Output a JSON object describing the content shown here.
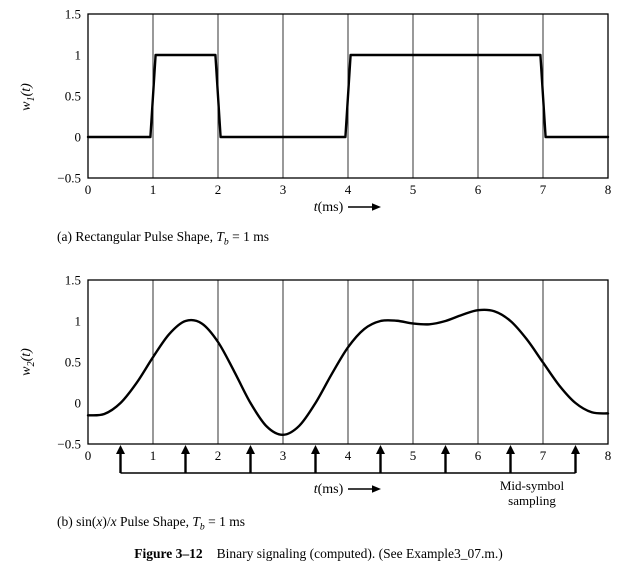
{
  "figure_caption": {
    "label": "Figure 3–12",
    "text": "Binary signaling (computed). (See Example3_07.m.)"
  },
  "plot_a": {
    "ylabel": {
      "base": "w",
      "sub": "1",
      "rest": "(t)"
    },
    "xlabel": {
      "t": "t",
      "units": "(ms)"
    },
    "caption": {
      "p1": "(a) Rectangular Pulse Shape, ",
      "T": "T",
      "Tsub": "b",
      "p2": " = 1 ms"
    }
  },
  "plot_b": {
    "ylabel": {
      "base": "w",
      "sub": "2",
      "rest": "(t)"
    },
    "xlabel": {
      "t": "t",
      "units": "(ms)"
    },
    "caption": {
      "p1": "(b) sin(",
      "x1": "x",
      "p2": ")/",
      "x2": "x",
      "p3": " Pulse Shape, ",
      "T": "T",
      "Tsub": "b",
      "p4": " = 1 ms"
    },
    "annotation": {
      "line1": "Mid-symbol",
      "line2": "sampling"
    }
  },
  "chart_data": [
    {
      "id": "plot_a",
      "type": "line",
      "title": "(a) Rectangular Pulse Shape, Tb = 1 ms",
      "xlabel": "t (ms)",
      "ylabel": "w1(t)",
      "xlim": [
        0,
        8
      ],
      "ylim": [
        -0.5,
        1.5
      ],
      "xticks": [
        0,
        1,
        2,
        3,
        4,
        5,
        6,
        7,
        8
      ],
      "yticks": [
        1.5,
        1,
        0.5,
        0,
        -0.5
      ],
      "grid": "vertical",
      "legend": "none",
      "smooth": false,
      "Tb_ms": 1,
      "bit_pattern": [
        0,
        1,
        0,
        0,
        1,
        1,
        1,
        0
      ],
      "x": [
        0,
        0.96,
        1.04,
        1.96,
        2.04,
        3.96,
        4.04,
        6.96,
        7.04,
        8
      ],
      "y": [
        0,
        0,
        1,
        1,
        0,
        0,
        1,
        1,
        0,
        0
      ]
    },
    {
      "id": "plot_b",
      "type": "line",
      "title": "(b) sin(x)/x Pulse Shape, Tb = 1 ms",
      "xlabel": "t (ms)",
      "ylabel": "w2(t)",
      "xlim": [
        0,
        8
      ],
      "ylim": [
        -0.5,
        1.5
      ],
      "xticks": [
        0,
        1,
        2,
        3,
        4,
        5,
        6,
        7,
        8
      ],
      "yticks": [
        1.5,
        1,
        0.5,
        0,
        -0.5
      ],
      "grid": "vertical",
      "legend": "none",
      "smooth": true,
      "Tb_ms": 1,
      "bit_pattern": [
        0,
        1,
        0,
        0,
        1,
        1,
        1,
        0
      ],
      "x": [
        0,
        0.25,
        0.5,
        0.75,
        1,
        1.25,
        1.5,
        1.75,
        2,
        2.25,
        2.5,
        2.75,
        3,
        3.25,
        3.5,
        3.75,
        4,
        4.25,
        4.5,
        4.75,
        5,
        5.25,
        5.5,
        5.75,
        6,
        6.25,
        6.5,
        6.75,
        7,
        7.25,
        7.5,
        7.75,
        8
      ],
      "y": [
        -0.15,
        -0.134,
        0,
        0.248,
        0.559,
        0.841,
        1,
        0.97,
        0.744,
        0.384,
        0,
        -0.287,
        -0.388,
        -0.278,
        0,
        0.353,
        0.679,
        0.902,
        1,
        1.003,
        0.97,
        0.96,
        1,
        1.073,
        1.132,
        1.119,
        1,
        0.777,
        0.494,
        0.214,
        0,
        -0.113,
        -0.127
      ],
      "sampling_times": [
        0.5,
        1.5,
        2.5,
        3.5,
        4.5,
        5.5,
        6.5,
        7.5
      ],
      "annotation": "Mid-symbol sampling"
    }
  ]
}
